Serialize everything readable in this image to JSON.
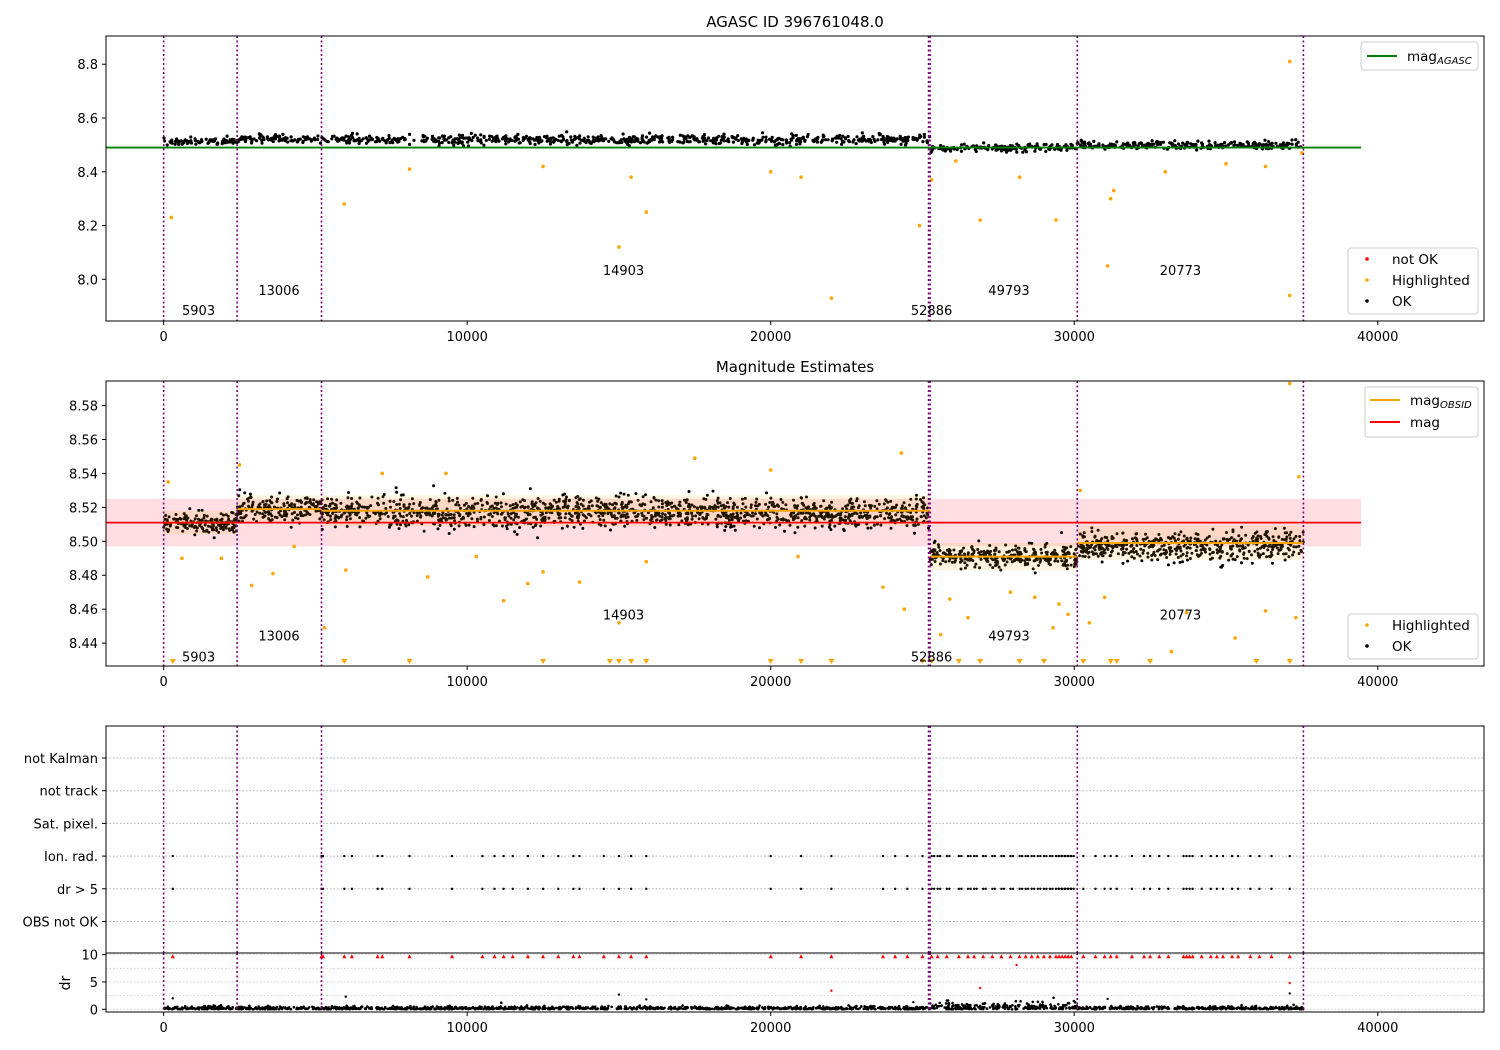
{
  "colors": {
    "ok": "#000000",
    "highlighted": "#ffa500",
    "not_ok": "#ff0000",
    "agasc_line": "#008000",
    "mag_line": "#ff0000",
    "obsid_line": "#ffa500",
    "band": "#ffb6c1",
    "obs_boundary": "#800080"
  },
  "chart_data": [
    {
      "type": "scatter",
      "title": "AGASC ID 396761048.0",
      "xlim": [
        -1900,
        43500
      ],
      "ylim": [
        7.845,
        8.905
      ],
      "xticks": [
        0,
        10000,
        20000,
        30000,
        40000
      ],
      "xtick_labels": [
        "0",
        "10000",
        "20000",
        "30000",
        "40000"
      ],
      "yticks": [
        8.0,
        8.2,
        8.4,
        8.6,
        8.8
      ],
      "ytick_labels": [
        "8.0",
        "8.2",
        "8.4",
        "8.6",
        "8.8"
      ],
      "agasc_mag": 8.49,
      "agasc_extent": [
        -1900,
        39450
      ],
      "obs_boundaries": [
        0,
        2420,
        5200,
        25200,
        25250,
        30100,
        37550
      ],
      "obsid_labels": [
        {
          "text": "5903",
          "x": 1150,
          "y": 7.885
        },
        {
          "text": "13006",
          "x": 3800,
          "y": 7.96
        },
        {
          "text": "14903",
          "x": 15150,
          "y": 8.035
        },
        {
          "text": "52886",
          "x": 25300,
          "y": 7.885
        },
        {
          "text": "49793",
          "x": 27850,
          "y": 7.96
        },
        {
          "text": "20773",
          "x": 33500,
          "y": 8.035
        }
      ],
      "segments": [
        {
          "x0": 0,
          "x1": 2420,
          "center": 8.513,
          "spread": 0.012
        },
        {
          "x0": 2420,
          "x1": 5200,
          "center": 8.521,
          "spread": 0.014
        },
        {
          "x0": 5200,
          "x1": 25250,
          "center": 8.519,
          "spread": 0.016
        },
        {
          "x0": 25250,
          "x1": 30100,
          "center": 8.489,
          "spread": 0.012
        },
        {
          "x0": 30100,
          "x1": 37550,
          "center": 8.499,
          "spread": 0.014
        }
      ],
      "highlighted_points": [
        [
          250,
          8.23
        ],
        [
          5950,
          8.28
        ],
        [
          8100,
          8.41
        ],
        [
          12500,
          8.42
        ],
        [
          15000,
          8.12
        ],
        [
          15400,
          8.38
        ],
        [
          15900,
          8.25
        ],
        [
          20000,
          8.4
        ],
        [
          21000,
          8.38
        ],
        [
          22000,
          7.93
        ],
        [
          24900,
          8.2
        ],
        [
          25300,
          8.37
        ],
        [
          26100,
          8.44
        ],
        [
          26900,
          8.22
        ],
        [
          28200,
          8.38
        ],
        [
          29400,
          8.22
        ],
        [
          31100,
          8.05
        ],
        [
          31200,
          8.3
        ],
        [
          31300,
          8.33
        ],
        [
          33000,
          8.4
        ],
        [
          35000,
          8.43
        ],
        [
          36300,
          8.42
        ],
        [
          37100,
          7.94
        ],
        [
          37100,
          8.81
        ],
        [
          37500,
          8.47
        ]
      ],
      "legend": {
        "upper": [
          {
            "label": "mag",
            "sub": "AGASC",
            "kind": "line",
            "color_key": "agasc_line"
          }
        ],
        "lower": [
          {
            "label": "not OK",
            "kind": "dot",
            "color_key": "not_ok"
          },
          {
            "label": "Highlighted",
            "kind": "dot",
            "color_key": "highlighted"
          },
          {
            "label": "OK",
            "kind": "dot",
            "color_key": "ok"
          }
        ]
      }
    },
    {
      "type": "scatter",
      "title": "Magnitude Estimates",
      "xlim": [
        -1900,
        43500
      ],
      "ylim": [
        8.4265,
        8.5945
      ],
      "xticks": [
        0,
        10000,
        20000,
        30000,
        40000
      ],
      "xtick_labels": [
        "0",
        "10000",
        "20000",
        "30000",
        "40000"
      ],
      "yticks": [
        8.44,
        8.46,
        8.48,
        8.5,
        8.52,
        8.54,
        8.56,
        8.58
      ],
      "ytick_labels": [
        "8.44",
        "8.46",
        "8.48",
        "8.50",
        "8.52",
        "8.54",
        "8.56",
        "8.58"
      ],
      "mag": 8.511,
      "mag_band": [
        8.497,
        8.525
      ],
      "mag_extent": [
        -1900,
        39450
      ],
      "obs_boundaries": [
        0,
        2420,
        5200,
        25200,
        25250,
        30100,
        37550
      ],
      "obsid_labels": [
        {
          "text": "5903",
          "x": 1150,
          "y": 8.432
        },
        {
          "text": "13006",
          "x": 3800,
          "y": 8.4445
        },
        {
          "text": "14903",
          "x": 15150,
          "y": 8.457
        },
        {
          "text": "52886",
          "x": 25300,
          "y": 8.432
        },
        {
          "text": "49793",
          "x": 27850,
          "y": 8.4445
        },
        {
          "text": "20773",
          "x": 33500,
          "y": 8.457
        }
      ],
      "segments": [
        {
          "x0": 0,
          "x1": 2420,
          "mean": 8.511,
          "center": 8.511,
          "spread": 0.006,
          "err": 0.007
        },
        {
          "x0": 2420,
          "x1": 5200,
          "mean": 8.519,
          "center": 8.519,
          "spread": 0.007,
          "err": 0.008
        },
        {
          "x0": 5200,
          "x1": 25250,
          "mean": 8.518,
          "center": 8.517,
          "spread": 0.008,
          "err": 0.009
        },
        {
          "x0": 25250,
          "x1": 30100,
          "mean": 8.491,
          "center": 8.491,
          "spread": 0.006,
          "err": 0.008
        },
        {
          "x0": 30100,
          "x1": 37550,
          "mean": 8.499,
          "center": 8.497,
          "spread": 0.008,
          "err": 0.01
        }
      ],
      "highlighted_points": [
        [
          150,
          8.535
        ],
        [
          600,
          8.49
        ],
        [
          1900,
          8.49
        ],
        [
          2500,
          8.545
        ],
        [
          2900,
          8.474
        ],
        [
          3600,
          8.481
        ],
        [
          4300,
          8.497
        ],
        [
          5300,
          8.449
        ],
        [
          6000,
          8.483
        ],
        [
          7200,
          8.54
        ],
        [
          8700,
          8.479
        ],
        [
          9300,
          8.54
        ],
        [
          10300,
          8.491
        ],
        [
          11200,
          8.465
        ],
        [
          12000,
          8.475
        ],
        [
          12500,
          8.482
        ],
        [
          13700,
          8.476
        ],
        [
          15000,
          8.452
        ],
        [
          15900,
          8.488
        ],
        [
          17500,
          8.549
        ],
        [
          20000,
          8.542
        ],
        [
          20900,
          8.491
        ],
        [
          23700,
          8.473
        ],
        [
          24300,
          8.552
        ],
        [
          24400,
          8.46
        ],
        [
          25600,
          8.445
        ],
        [
          25900,
          8.466
        ],
        [
          26500,
          8.455
        ],
        [
          27900,
          8.47
        ],
        [
          28700,
          8.467
        ],
        [
          29300,
          8.449
        ],
        [
          29500,
          8.463
        ],
        [
          29800,
          8.457
        ],
        [
          30200,
          8.53
        ],
        [
          30500,
          8.452
        ],
        [
          31000,
          8.467
        ],
        [
          33200,
          8.435
        ],
        [
          33700,
          8.458
        ],
        [
          35300,
          8.443
        ],
        [
          36300,
          8.459
        ],
        [
          37100,
          8.593
        ],
        [
          37300,
          8.455
        ],
        [
          37400,
          8.538
        ]
      ],
      "clipped_low_x": [
        300,
        5950,
        8100,
        12500,
        14700,
        15000,
        15400,
        15900,
        20000,
        21000,
        22000,
        25000,
        25300,
        26200,
        26900,
        28200,
        29000,
        30300,
        31200,
        31400,
        32500,
        36000,
        37100
      ],
      "legend": {
        "upper": [
          {
            "label": "mag",
            "sub": "OBSID",
            "kind": "line",
            "color_key": "obsid_line"
          },
          {
            "label": "mag",
            "sub": "",
            "kind": "line",
            "color_key": "mag_line"
          }
        ],
        "lower": [
          {
            "label": "Highlighted",
            "kind": "dot",
            "color_key": "highlighted"
          },
          {
            "label": "OK",
            "kind": "dot",
            "color_key": "ok"
          }
        ]
      }
    },
    {
      "type": "scatter",
      "title": "",
      "xlim": [
        -1900,
        43500
      ],
      "categories": [
        "not Kalman",
        "not track",
        "Sat. pixel.",
        "Ion. rad.",
        "dr > 5",
        "OBS not OK"
      ],
      "obs_boundaries": [
        0,
        2420,
        5200,
        25200,
        25250,
        30100,
        37550
      ],
      "flag_x": [
        300,
        5200,
        5250,
        5950,
        6200,
        7050,
        7200,
        8100,
        9500,
        10500,
        10900,
        11200,
        11500,
        12000,
        12500,
        13000,
        13500,
        13700,
        14500,
        15000,
        15400,
        15900,
        20000,
        21000,
        22000,
        23700,
        24100,
        24500,
        25000,
        25300,
        25500,
        25800,
        26200,
        26500,
        26700,
        27000,
        27300,
        27600,
        27900,
        28200,
        28400,
        28600,
        28800,
        29000,
        29200,
        29400,
        29500,
        29600,
        29700,
        29800,
        29900,
        30300,
        30700,
        31000,
        31200,
        31400,
        31900,
        32300,
        32500,
        32800,
        33100,
        33600,
        33700,
        33800,
        33900,
        34200,
        34500,
        34700,
        34900,
        35200,
        35400,
        35800,
        36100,
        36500,
        37100
      ]
    },
    {
      "type": "scatter",
      "title": "",
      "ylabel": "dr",
      "xlim": [
        -1900,
        43500
      ],
      "ylim": [
        -0.5,
        10.3
      ],
      "yticks": [
        0,
        5,
        10
      ],
      "ytick_labels": [
        "0",
        "5",
        "10"
      ],
      "xticks": [
        0,
        10000,
        20000,
        30000,
        40000
      ],
      "xtick_labels": [
        "0",
        "10000",
        "20000",
        "30000",
        "40000"
      ],
      "obs_boundaries": [
        0,
        2420,
        5200,
        25200,
        25250,
        30100,
        37550
      ],
      "extra_points": [
        [
          300,
          2.0
        ],
        [
          6000,
          2.3
        ],
        [
          15000,
          2.7
        ],
        [
          15900,
          1.8
        ],
        [
          22000,
          3.4
        ],
        [
          24700,
          1.3
        ],
        [
          26900,
          3.9
        ],
        [
          28100,
          8.1
        ],
        [
          31100,
          1.9
        ],
        [
          37100,
          4.8
        ],
        [
          37100,
          2.9
        ]
      ]
    }
  ]
}
